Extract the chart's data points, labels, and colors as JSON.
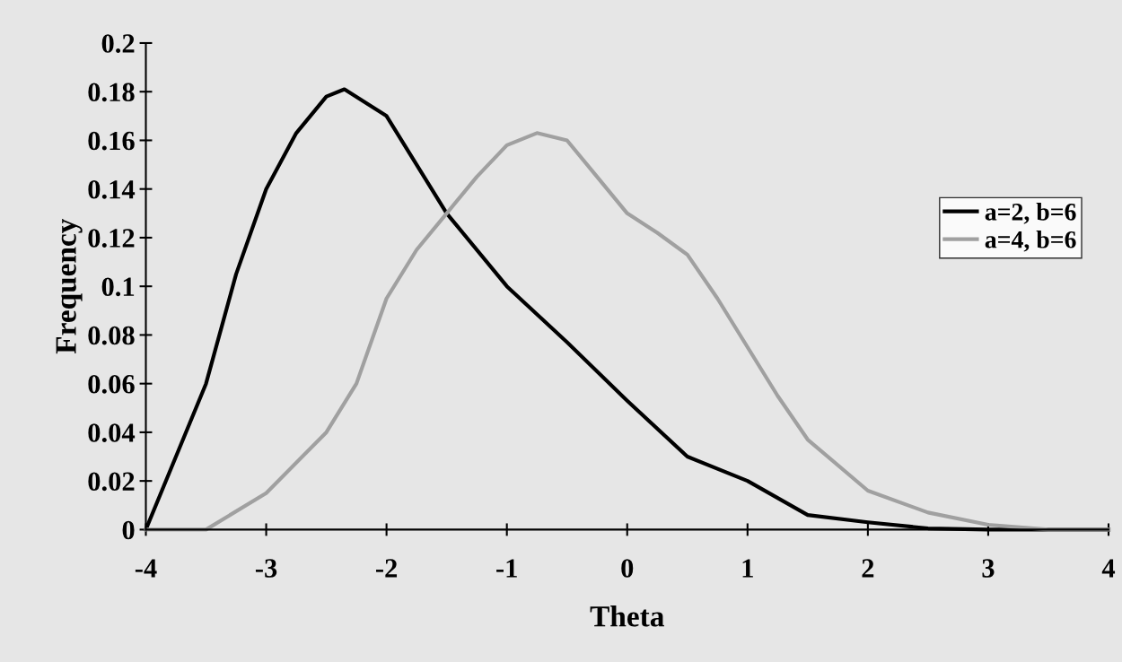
{
  "chart_data": {
    "type": "line",
    "xlabel": "Theta",
    "ylabel": "Frequency",
    "xlim": [
      -4,
      4
    ],
    "xticks": [
      -4,
      -3,
      -2,
      -1,
      0,
      1,
      2,
      3,
      4
    ],
    "ylim": [
      0,
      0.2
    ],
    "yticks": [
      0,
      0.02,
      0.04,
      0.06,
      0.08,
      0.1,
      0.12,
      0.14,
      0.16,
      0.18,
      0.2
    ],
    "grid": false,
    "legend": "right",
    "marker": "none",
    "line_style": "solid",
    "series": [
      {
        "name": "a=2, b=6",
        "color": "#000000",
        "x": [
          -4,
          -3.75,
          -3.5,
          -3.25,
          -3,
          -2.75,
          -2.5,
          -2.35,
          -2,
          -1.75,
          -1.5,
          -1,
          -0.5,
          0,
          0.5,
          1,
          1.25,
          1.5,
          2,
          2.5,
          3,
          4
        ],
        "values": [
          0,
          0.03,
          0.06,
          0.105,
          0.14,
          0.163,
          0.178,
          0.181,
          0.17,
          0.15,
          0.13,
          0.1,
          0.077,
          0.053,
          0.03,
          0.02,
          0.013,
          0.006,
          0.003,
          0.0005,
          0,
          0
        ]
      },
      {
        "name": "a=4, b=6",
        "color": "#a0a0a0",
        "x": [
          -4,
          -3.5,
          -3,
          -2.5,
          -2.25,
          -2,
          -1.75,
          -1.5,
          -1.25,
          -1,
          -0.75,
          -0.5,
          -0.25,
          0,
          0.25,
          0.5,
          0.75,
          1,
          1.25,
          1.5,
          2,
          2.5,
          3,
          3.5,
          4
        ],
        "values": [
          0,
          0,
          0.015,
          0.04,
          0.06,
          0.095,
          0.115,
          0.13,
          0.145,
          0.158,
          0.163,
          0.16,
          0.145,
          0.13,
          0.122,
          0.113,
          0.095,
          0.075,
          0.055,
          0.037,
          0.016,
          0.007,
          0.002,
          0,
          0
        ]
      }
    ]
  }
}
